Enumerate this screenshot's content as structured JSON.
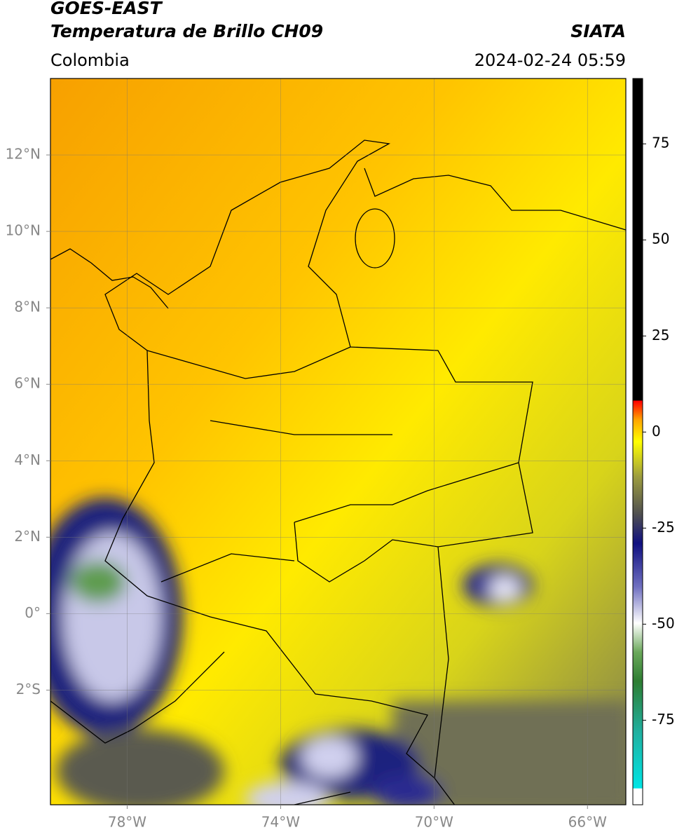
{
  "header": {
    "title_line1": "GOES-EAST",
    "title_line2": "Temperatura de Brillo CH09",
    "source": "SIATA",
    "region": "Colombia",
    "timestamp": "2024-02-24 05:59"
  },
  "map": {
    "xlim": [
      -80,
      -65
    ],
    "ylim": [
      -5,
      14
    ],
    "xticks": [
      {
        "value": -78,
        "label": "78°W"
      },
      {
        "value": -74,
        "label": "74°W"
      },
      {
        "value": -70,
        "label": "70°W"
      },
      {
        "value": -66,
        "label": "66°W"
      }
    ],
    "yticks": [
      {
        "value": 12,
        "label": "12°N"
      },
      {
        "value": 10,
        "label": "10°N"
      },
      {
        "value": 8,
        "label": "8°N"
      },
      {
        "value": 6,
        "label": "6°N"
      },
      {
        "value": 4,
        "label": "4°N"
      },
      {
        "value": 2,
        "label": "2°N"
      },
      {
        "value": 0,
        "label": "0°"
      },
      {
        "value": -2,
        "label": "2°S"
      }
    ],
    "grid": true
  },
  "colorbar": {
    "lim": [
      -97,
      92
    ],
    "ticks": [
      75,
      50,
      25,
      0,
      -25,
      -50,
      -75
    ]
  }
}
